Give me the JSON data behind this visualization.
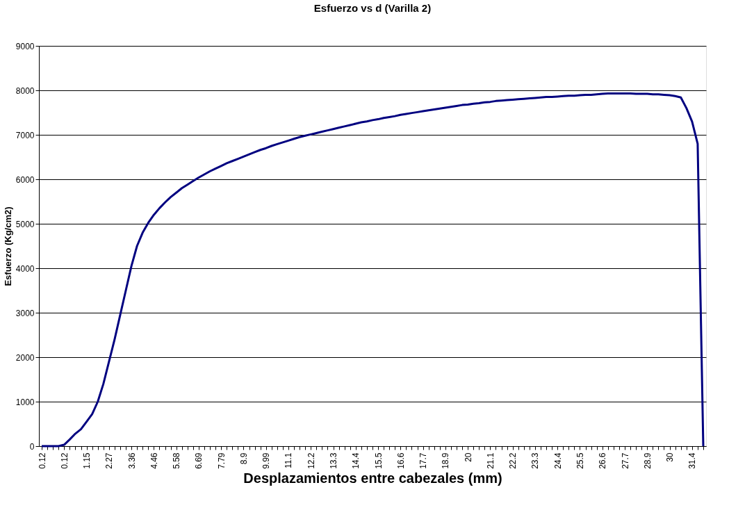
{
  "chart_data": {
    "type": "line",
    "title": "Esfuerzo vs d (Varilla 2)",
    "xlabel": "Desplazamientos entre cabezales (mm)",
    "ylabel": "Esfuerzo (Kg/cm2)",
    "categories": [
      "0.12",
      null,
      null,
      null,
      "0.12",
      null,
      null,
      null,
      "1.15",
      null,
      null,
      null,
      "2.27",
      null,
      null,
      null,
      "3.36",
      null,
      null,
      null,
      "4.46",
      null,
      null,
      null,
      "5.58",
      null,
      null,
      null,
      "6.69",
      null,
      null,
      null,
      "7.79",
      null,
      null,
      null,
      "8.9",
      null,
      null,
      null,
      "9.99",
      null,
      null,
      null,
      "11.1",
      null,
      null,
      null,
      "12.2",
      null,
      null,
      null,
      "13.3",
      null,
      null,
      null,
      "14.4",
      null,
      null,
      null,
      "15.5",
      null,
      null,
      null,
      "16.6",
      null,
      null,
      null,
      "17.7",
      null,
      null,
      null,
      "18.9",
      null,
      null,
      null,
      "20",
      null,
      null,
      null,
      "21.1",
      null,
      null,
      null,
      "22.2",
      null,
      null,
      null,
      "23.3",
      null,
      null,
      null,
      "24.4",
      null,
      null,
      null,
      "25.5",
      null,
      null,
      null,
      "26.6",
      null,
      null,
      null,
      "27.7",
      null,
      null,
      null,
      "28.9",
      null,
      null,
      null,
      "30",
      null,
      null,
      null,
      "31.4",
      null,
      null
    ],
    "series": [
      {
        "color": "#000080",
        "values": [
          0,
          0,
          0,
          0,
          30,
          150,
          280,
          380,
          550,
          720,
          1000,
          1400,
          1900,
          2400,
          2950,
          3500,
          4050,
          4500,
          4800,
          5020,
          5200,
          5350,
          5480,
          5600,
          5700,
          5800,
          5880,
          5960,
          6040,
          6110,
          6180,
          6240,
          6300,
          6360,
          6410,
          6460,
          6510,
          6560,
          6610,
          6660,
          6700,
          6750,
          6790,
          6830,
          6870,
          6910,
          6950,
          6980,
          7010,
          7040,
          7070,
          7100,
          7130,
          7160,
          7190,
          7220,
          7250,
          7280,
          7300,
          7330,
          7350,
          7380,
          7400,
          7420,
          7450,
          7470,
          7490,
          7510,
          7530,
          7550,
          7570,
          7590,
          7610,
          7630,
          7650,
          7670,
          7680,
          7700,
          7710,
          7730,
          7740,
          7760,
          7770,
          7780,
          7790,
          7800,
          7810,
          7820,
          7830,
          7840,
          7850,
          7850,
          7860,
          7870,
          7880,
          7880,
          7890,
          7900,
          7900,
          7910,
          7920,
          7930,
          7930,
          7930,
          7930,
          7930,
          7920,
          7920,
          7920,
          7910,
          7910,
          7900,
          7890,
          7870,
          7840,
          7600,
          7300,
          6800,
          0
        ]
      }
    ],
    "ylim": [
      0,
      9000
    ],
    "yticks": [
      0,
      1000,
      2000,
      3000,
      4000,
      5000,
      6000,
      7000,
      8000,
      9000
    ],
    "grid": "y",
    "marker": "none",
    "line_style": "solid"
  }
}
